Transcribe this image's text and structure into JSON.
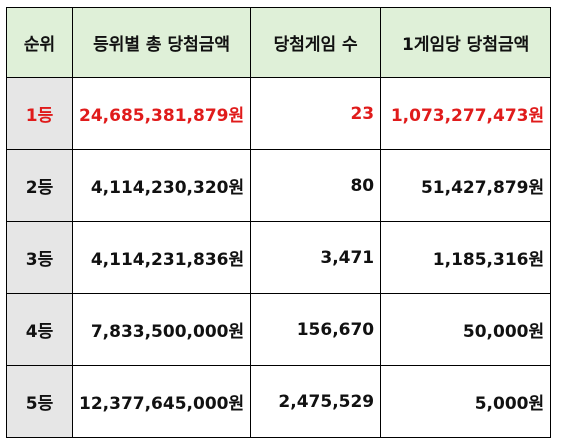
{
  "headers": [
    "순위",
    "등위별 총 당첨금액",
    "당첨게임 수",
    "1게임당 당첨금액"
  ],
  "rows": [
    {
      "rank": "1등",
      "total": "24,685,381,879원",
      "count": "23",
      "per_game": "1,073,277,473원"
    },
    {
      "rank": "2등",
      "total": "4,114,230,320원",
      "count": "80",
      "per_game": "51,427,879원"
    },
    {
      "rank": "3등",
      "total": "4,114,231,836원",
      "count": "3,471",
      "per_game": "1,185,316원"
    },
    {
      "rank": "4등",
      "total": "7,833,500,000원",
      "count": "156,670",
      "per_game": "50,000원"
    },
    {
      "rank": "5등",
      "total": "12,377,645,000원",
      "count": "2,475,529",
      "per_game": "5,000원"
    }
  ],
  "colors": {
    "header_bg": "#dff0d8",
    "rank_bg": "#e6e6e6",
    "highlight": "#e01b1b"
  }
}
